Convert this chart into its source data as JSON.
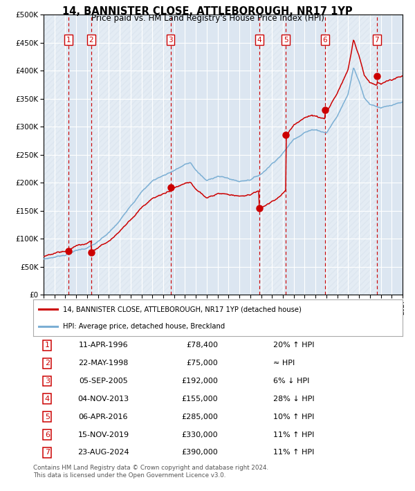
{
  "title": "14, BANNISTER CLOSE, ATTLEBOROUGH, NR17 1YP",
  "subtitle": "Price paid vs. HM Land Registry's House Price Index (HPI)",
  "sales": [
    {
      "num": 1,
      "date_str": "11-APR-1996",
      "year": 1996.28,
      "price": 78400
    },
    {
      "num": 2,
      "date_str": "22-MAY-1998",
      "year": 1998.38,
      "price": 75000
    },
    {
      "num": 3,
      "date_str": "05-SEP-2005",
      "year": 2005.67,
      "price": 192000
    },
    {
      "num": 4,
      "date_str": "04-NOV-2013",
      "year": 2013.83,
      "price": 155000
    },
    {
      "num": 5,
      "date_str": "06-APR-2016",
      "year": 2016.26,
      "price": 285000
    },
    {
      "num": 6,
      "date_str": "15-NOV-2019",
      "year": 2019.87,
      "price": 330000
    },
    {
      "num": 7,
      "date_str": "23-AUG-2024",
      "year": 2024.64,
      "price": 390000
    }
  ],
  "hpi_line_color": "#7bafd4",
  "price_line_color": "#cc0000",
  "sale_dot_color": "#cc0000",
  "vline_color": "#cc0000",
  "plot_bg_color": "#dce6f1",
  "grid_color": "#ffffff",
  "ylim": [
    0,
    500000
  ],
  "yticks": [
    0,
    50000,
    100000,
    150000,
    200000,
    250000,
    300000,
    350000,
    400000,
    450000,
    500000
  ],
  "xlim": [
    1994,
    2027
  ],
  "xticks": [
    1994,
    1995,
    1996,
    1997,
    1998,
    1999,
    2000,
    2001,
    2002,
    2003,
    2004,
    2005,
    2006,
    2007,
    2008,
    2009,
    2010,
    2011,
    2012,
    2013,
    2014,
    2015,
    2016,
    2017,
    2018,
    2019,
    2020,
    2021,
    2022,
    2023,
    2024,
    2025,
    2026,
    2027
  ],
  "legend_label_red": "14, BANNISTER CLOSE, ATTLEBOROUGH, NR17 1YP (detached house)",
  "legend_label_blue": "HPI: Average price, detached house, Breckland",
  "footer": "Contains HM Land Registry data © Crown copyright and database right 2024.\nThis data is licensed under the Open Government Licence v3.0.",
  "label_col2": [
    "11-APR-1996",
    "22-MAY-1998",
    "05-SEP-2005",
    "04-NOV-2013",
    "06-APR-2016",
    "15-NOV-2019",
    "23-AUG-2024"
  ],
  "label_col3": [
    "£78,400",
    "£75,000",
    "£192,000",
    "£155,000",
    "£285,000",
    "£330,000",
    "£390,000"
  ],
  "label_col4": [
    "20% ↑ HPI",
    "≈ HPI",
    "6% ↓ HPI",
    "28% ↓ HPI",
    "10% ↑ HPI",
    "11% ↑ HPI",
    "11% ↑ HPI"
  ]
}
